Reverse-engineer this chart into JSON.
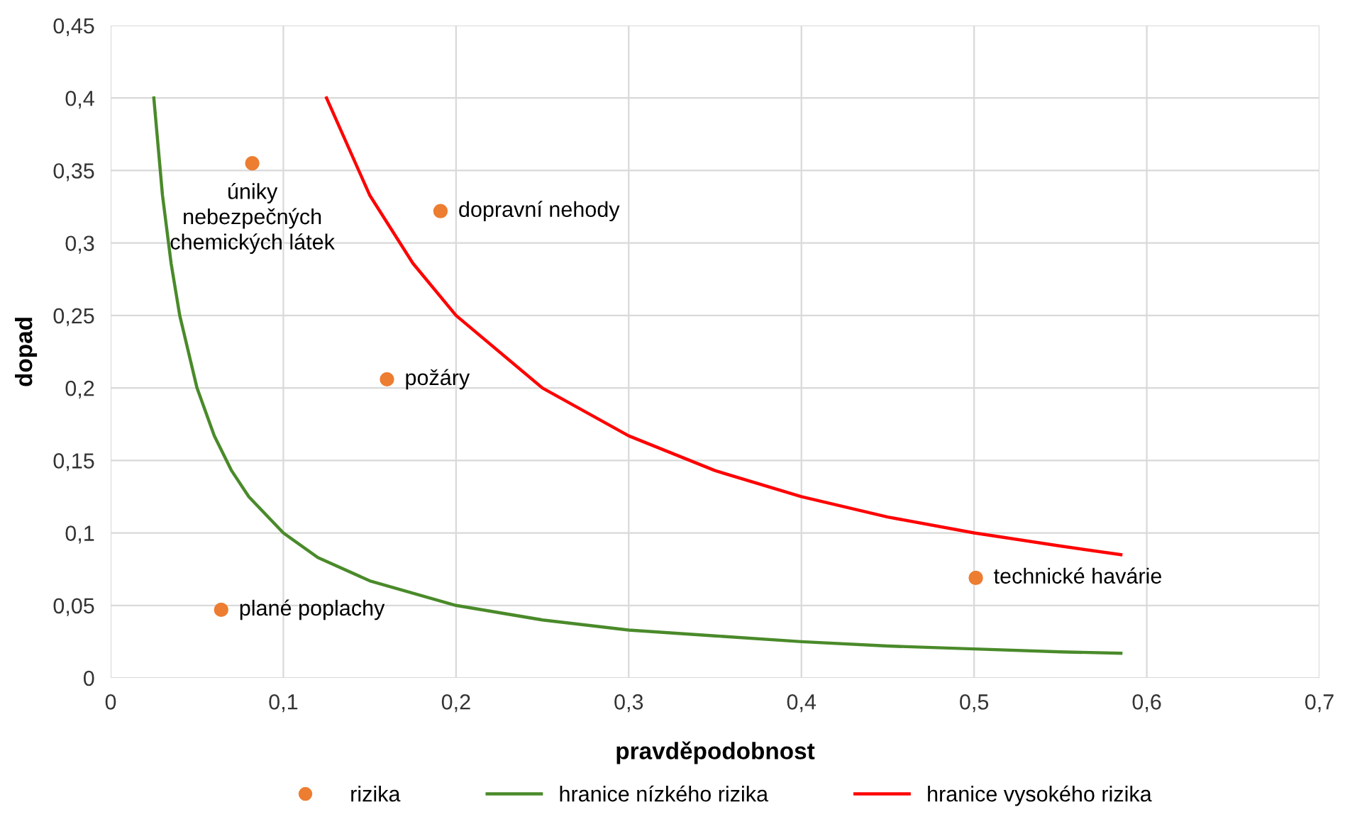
{
  "chart_data": {
    "type": "scatter",
    "xlabel": "pravděpodobnost",
    "ylabel": "dopad",
    "xlim": [
      0,
      0.7
    ],
    "ylim": [
      0,
      0.45
    ],
    "xticks": [
      0,
      {
        "value": 0.1,
        "label": "0,1"
      },
      {
        "value": 0.2,
        "label": "0,2"
      },
      {
        "value": 0.3,
        "label": "0,3"
      },
      {
        "value": 0.4,
        "label": "0,4"
      },
      {
        "value": 0.5,
        "label": "0,5"
      },
      {
        "value": 0.6,
        "label": "0,6"
      },
      {
        "value": 0.7,
        "label": "0,7"
      }
    ],
    "yticks": [
      0,
      {
        "value": 0.05,
        "label": "0,05"
      },
      {
        "value": 0.1,
        "label": "0,1"
      },
      {
        "value": 0.15,
        "label": "0,15"
      },
      {
        "value": 0.2,
        "label": "0,2"
      },
      {
        "value": 0.25,
        "label": "0,25"
      },
      {
        "value": 0.3,
        "label": "0,3"
      },
      {
        "value": 0.35,
        "label": "0,35"
      },
      {
        "value": 0.4,
        "label": "0,4"
      },
      {
        "value": 0.45,
        "label": "0,45"
      }
    ],
    "grid": true,
    "legend": "bottom",
    "series": [
      {
        "name": "rizika",
        "marker": "circle",
        "color": "#ed7d31",
        "x": [
          0.082,
          0.191,
          0.16,
          0.064,
          0.501
        ],
        "values": [
          0.355,
          0.322,
          0.206,
          0.047,
          0.069
        ]
      },
      {
        "name": "hranice nízkého rizika",
        "type": "line",
        "marker": "none",
        "color": "#4a8a2a",
        "x": [
          0.025,
          0.03,
          0.035,
          0.04,
          0.05,
          0.06,
          0.07,
          0.08,
          0.1,
          0.12,
          0.15,
          0.2,
          0.25,
          0.3,
          0.35,
          0.4,
          0.45,
          0.5,
          0.55,
          0.585
        ],
        "values": [
          0.4,
          0.333,
          0.286,
          0.25,
          0.2,
          0.167,
          0.143,
          0.125,
          0.1,
          0.083,
          0.067,
          0.05,
          0.04,
          0.033,
          0.029,
          0.025,
          0.022,
          0.02,
          0.018,
          0.017
        ]
      },
      {
        "name": "hranice vysokého rizika",
        "type": "line",
        "marker": "none",
        "color": "#ff0000",
        "x": [
          0.125,
          0.15,
          0.175,
          0.2,
          0.25,
          0.3,
          0.35,
          0.4,
          0.45,
          0.5,
          0.55,
          0.585
        ],
        "values": [
          0.4,
          0.333,
          0.286,
          0.25,
          0.2,
          0.167,
          0.143,
          0.125,
          0.111,
          0.1,
          0.091,
          0.085
        ]
      }
    ],
    "annotations": [
      {
        "text": "úniky\nnebezpečných\nchemických látek",
        "x": 0.082,
        "y": 0.355
      },
      {
        "text": "dopravní nehody",
        "x": 0.191,
        "y": 0.322
      },
      {
        "text": "požáry",
        "x": 0.16,
        "y": 0.206
      },
      {
        "text": "plané poplachy",
        "x": 0.064,
        "y": 0.047
      },
      {
        "text": "technické havárie",
        "x": 0.501,
        "y": 0.069
      }
    ]
  }
}
